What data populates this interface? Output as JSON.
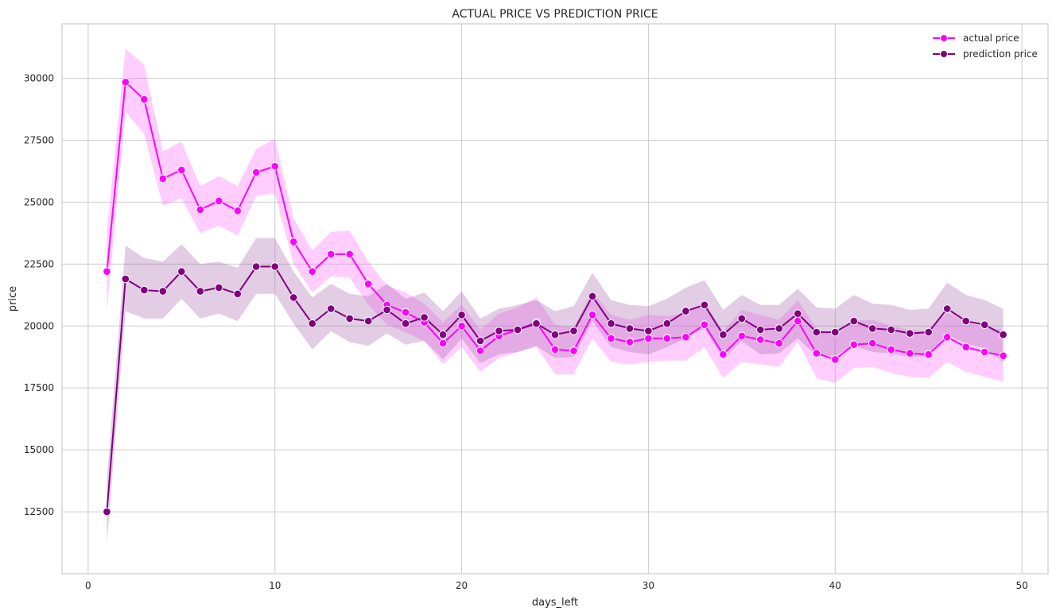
{
  "chart_data": {
    "type": "line",
    "title": "ACTUAL PRICE VS PREDICTION PRICE",
    "xlabel": "days_left",
    "ylabel": "price",
    "xlim": [
      -1.4,
      51.4
    ],
    "ylim": [
      10000,
      32200
    ],
    "xticks": [
      0,
      10,
      20,
      30,
      40,
      50
    ],
    "yticks": [
      12500,
      15000,
      17500,
      20000,
      22500,
      25000,
      27500,
      30000
    ],
    "grid": true,
    "legend_position": "top-right",
    "x": [
      1,
      2,
      3,
      4,
      5,
      6,
      7,
      8,
      9,
      10,
      11,
      12,
      13,
      14,
      15,
      16,
      17,
      18,
      19,
      20,
      21,
      22,
      23,
      24,
      25,
      26,
      27,
      28,
      29,
      30,
      31,
      32,
      33,
      34,
      35,
      36,
      37,
      38,
      39,
      40,
      41,
      42,
      43,
      44,
      45,
      46,
      47,
      48,
      49
    ],
    "series": [
      {
        "name": "actual price",
        "color": "#ff00ff",
        "band_color": "#ff66ff",
        "values": [
          22200,
          29850,
          29150,
          25950,
          26300,
          24700,
          25050,
          24650,
          26200,
          26450,
          23400,
          22200,
          22900,
          22900,
          21700,
          20850,
          20550,
          20150,
          19300,
          20000,
          19000,
          19600,
          19850,
          20150,
          19050,
          19000,
          20450,
          19500,
          19350,
          19500,
          19500,
          19550,
          20050,
          18850,
          19600,
          19450,
          19300,
          20200,
          18900,
          18650,
          19250,
          19300,
          19050,
          18900,
          18850,
          19550,
          19150,
          18950,
          18800
        ],
        "ci_lower": [
          20600,
          28650,
          27750,
          24850,
          25150,
          23750,
          24050,
          23650,
          25250,
          25350,
          22500,
          21350,
          22000,
          21950,
          20850,
          20050,
          19750,
          19400,
          18450,
          19150,
          18150,
          18700,
          18950,
          19150,
          18050,
          18050,
          19500,
          18550,
          18450,
          18550,
          18600,
          18600,
          19150,
          17900,
          18550,
          18450,
          18350,
          19350,
          17900,
          17700,
          18300,
          18350,
          18100,
          17950,
          17900,
          18550,
          18150,
          17950,
          17750
        ],
        "ci_upper": [
          23800,
          31200,
          30550,
          27050,
          27450,
          25650,
          26050,
          25650,
          27150,
          27550,
          24350,
          23050,
          23800,
          23850,
          22600,
          21650,
          21350,
          20900,
          20150,
          20850,
          19850,
          20500,
          20750,
          21150,
          20050,
          19950,
          21400,
          20450,
          20250,
          20450,
          20400,
          20500,
          20950,
          19800,
          20650,
          20450,
          20250,
          21050,
          19900,
          19600,
          20200,
          20250,
          20000,
          19850,
          19800,
          20550,
          20150,
          19950,
          19850
        ]
      },
      {
        "name": "prediction price",
        "color": "#800080",
        "band_color": "#a05aa5",
        "values": [
          12500,
          21900,
          21450,
          21400,
          22200,
          21400,
          21550,
          21300,
          22400,
          22400,
          21150,
          20100,
          20700,
          20300,
          20200,
          20650,
          20100,
          20350,
          19650,
          20450,
          19400,
          19800,
          19850,
          20100,
          19650,
          19800,
          21200,
          20100,
          19900,
          19800,
          20100,
          20600,
          20850,
          19650,
          20300,
          19850,
          19900,
          20500,
          19750,
          19750,
          20200,
          19900,
          19850,
          19700,
          19750,
          20700,
          20200,
          20050,
          19650
        ],
        "ci_lower": [
          11200,
          20600,
          20300,
          20300,
          21100,
          20300,
          20500,
          20200,
          21300,
          21300,
          20100,
          19050,
          19800,
          19350,
          19200,
          19700,
          19250,
          19400,
          18650,
          19500,
          18500,
          18850,
          18950,
          19200,
          18700,
          18750,
          20200,
          19150,
          18950,
          18850,
          19150,
          19500,
          19900,
          18650,
          19400,
          18850,
          18900,
          19500,
          18800,
          18800,
          19200,
          18950,
          18900,
          18750,
          18800,
          19650,
          19300,
          19100,
          18550
        ],
        "ci_upper": [
          13800,
          23250,
          22750,
          22600,
          23300,
          22500,
          22600,
          22350,
          23550,
          23550,
          22200,
          21150,
          21700,
          21300,
          21200,
          21700,
          21100,
          21350,
          20600,
          21400,
          20300,
          20700,
          20850,
          21050,
          20600,
          20800,
          22150,
          21050,
          20850,
          20800,
          21100,
          21550,
          21850,
          20650,
          21250,
          20850,
          20850,
          21500,
          20750,
          20700,
          21250,
          20900,
          20850,
          20650,
          20700,
          21750,
          21250,
          21050,
          20700
        ]
      }
    ]
  }
}
